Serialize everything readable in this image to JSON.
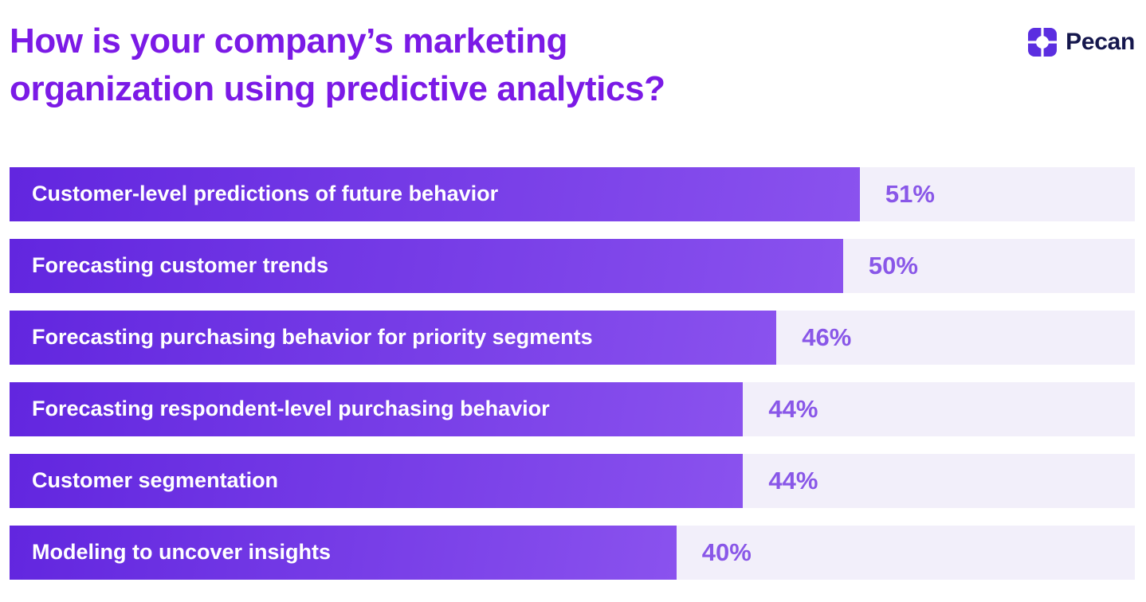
{
  "header": {
    "title": "How is your company’s marketing organization using predictive analytics?",
    "brand": "Pecan"
  },
  "colors": {
    "background": "#ffffff",
    "title": "#7b1ae6",
    "bar_gradient_start": "#6226df",
    "bar_gradient_end": "#8a52ee",
    "track": "#f2effa",
    "bar_text": "#ffffff",
    "value_text": "#8957e8",
    "brand_text": "#15174d",
    "logo": "#5b2ee0"
  },
  "chart_data": {
    "type": "bar",
    "orientation": "horizontal",
    "title": "How is your company’s marketing organization using predictive analytics?",
    "categories": [
      "Customer-level predictions of future behavior",
      "Forecasting customer trends",
      "Forecasting purchasing behavior for priority segments",
      "Forecasting respondent-level purchasing behavior",
      "Customer segmentation",
      "Modeling to uncover insights"
    ],
    "values": [
      51,
      50,
      46,
      44,
      44,
      40
    ],
    "value_labels": [
      "51%",
      "50%",
      "46%",
      "44%",
      "44%",
      "40%"
    ],
    "xlim": [
      0,
      67.5
    ],
    "grid": false,
    "legend": false
  }
}
